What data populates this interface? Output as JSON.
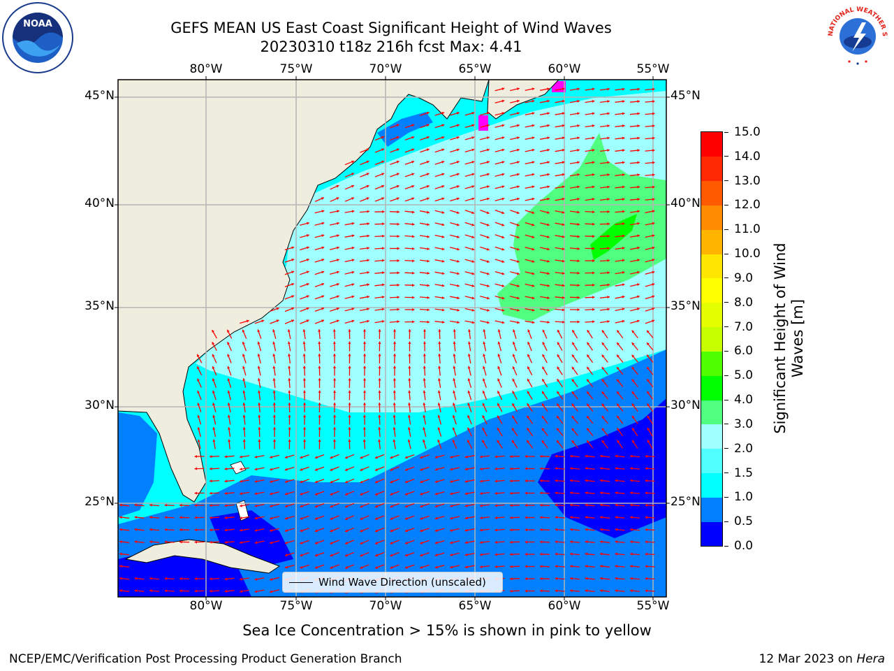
{
  "title_line1": "GEFS MEAN US East Coast Significant Height of Wind Waves",
  "title_line2": "20230310 t18z 216h fcst   Max: 4.41",
  "lat_labels": [
    "45°N",
    "40°N",
    "35°N",
    "30°N",
    "25°N"
  ],
  "lon_labels": [
    "80°W",
    "75°W",
    "70°W",
    "65°W",
    "60°W",
    "55°W"
  ],
  "legend_label": "Wind Wave Direction (unscaled)",
  "colorbar": {
    "label": "Significant Height of Wind Waves [m]",
    "ticks": [
      "0.0",
      "0.5",
      "1.0",
      "1.5",
      "2.0",
      "3.0",
      "4.0",
      "5.0",
      "6.0",
      "7.0",
      "8.0",
      "9.0",
      "10.0",
      "11.0",
      "12.0",
      "13.0",
      "14.0",
      "15.0"
    ],
    "colors": [
      "#0000ff",
      "#0080ff",
      "#00ffff",
      "#50ffff",
      "#a0ffff",
      "#50ff80",
      "#00ff00",
      "#50ff00",
      "#c8ff00",
      "#e6ff00",
      "#ffff00",
      "#ffe600",
      "#ffb400",
      "#ff8c00",
      "#ff5a00",
      "#ff2800",
      "#ff0000"
    ]
  },
  "map_colors": {
    "land": "#efedde",
    "grid": "#b4b4b4",
    "arrow": "#ff0000",
    "ice": "#ff00ff"
  },
  "sea_ice_note": "Sea Ice Concentration > 15% is shown in pink to yellow",
  "footer_left": "NCEP/EMC/Verification Post Processing Product Generation Branch",
  "footer_date": "12 Mar 2023 on ",
  "footer_machine": "Hera",
  "logos": {
    "left": "NOAA",
    "right": "NATIONAL WEATHER SERVICE"
  }
}
